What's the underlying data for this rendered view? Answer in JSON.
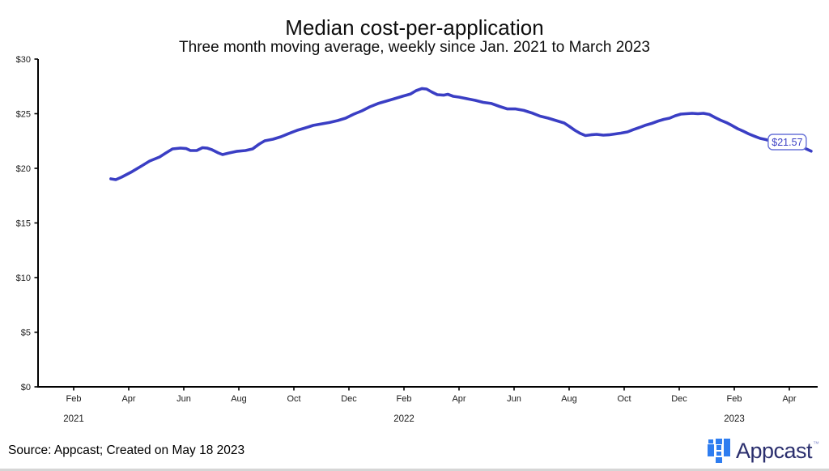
{
  "chart_data": {
    "type": "line",
    "title": "Median cost-per-application",
    "subtitle": "Three month moving average, weekly since Jan. 2021 to March 2023",
    "ylabel": "",
    "xlabel": "",
    "y_domain": [
      0,
      30
    ],
    "x_domain_months_since_jan_2021": [
      -0.3,
      28.2
    ],
    "grid": "off",
    "legend": "none",
    "line_color": "#3a3ec4",
    "y_ticks": [
      {
        "v": 0,
        "label": "$0"
      },
      {
        "v": 5,
        "label": "$5"
      },
      {
        "v": 10,
        "label": "$10"
      },
      {
        "v": 15,
        "label": "$15"
      },
      {
        "v": 20,
        "label": "$20"
      },
      {
        "v": 25,
        "label": "$25"
      },
      {
        "v": 30,
        "label": "$30"
      }
    ],
    "x_ticks": [
      {
        "m": 1,
        "label": "Feb"
      },
      {
        "m": 3,
        "label": "Apr"
      },
      {
        "m": 5,
        "label": "Jun"
      },
      {
        "m": 7,
        "label": "Aug"
      },
      {
        "m": 9,
        "label": "Oct"
      },
      {
        "m": 11,
        "label": "Dec"
      },
      {
        "m": 13,
        "label": "Feb"
      },
      {
        "m": 15,
        "label": "Apr"
      },
      {
        "m": 17,
        "label": "Jun"
      },
      {
        "m": 19,
        "label": "Aug"
      },
      {
        "m": 21,
        "label": "Oct"
      },
      {
        "m": 23,
        "label": "Dec"
      },
      {
        "m": 25,
        "label": "Feb"
      },
      {
        "m": 27,
        "label": "Apr"
      }
    ],
    "year_labels": [
      {
        "m": 1,
        "label": "2021"
      },
      {
        "m": 13,
        "label": "2022"
      },
      {
        "m": 25,
        "label": "2023"
      }
    ],
    "end_annotation": {
      "label": "$21.57",
      "value": 21.57
    },
    "series": [
      {
        "name": "Median cost-per-application",
        "points": [
          [
            2.35,
            19.04
          ],
          [
            2.53,
            18.96
          ],
          [
            2.74,
            19.19
          ],
          [
            3.12,
            19.7
          ],
          [
            3.47,
            20.22
          ],
          [
            3.76,
            20.67
          ],
          [
            4.12,
            21.04
          ],
          [
            4.35,
            21.41
          ],
          [
            4.59,
            21.78
          ],
          [
            4.88,
            21.85
          ],
          [
            5.09,
            21.81
          ],
          [
            5.24,
            21.63
          ],
          [
            5.47,
            21.63
          ],
          [
            5.68,
            21.89
          ],
          [
            5.85,
            21.85
          ],
          [
            6.03,
            21.7
          ],
          [
            6.26,
            21.41
          ],
          [
            6.41,
            21.26
          ],
          [
            6.65,
            21.41
          ],
          [
            6.94,
            21.56
          ],
          [
            7.24,
            21.63
          ],
          [
            7.5,
            21.78
          ],
          [
            7.74,
            22.22
          ],
          [
            7.94,
            22.52
          ],
          [
            8.24,
            22.67
          ],
          [
            8.53,
            22.89
          ],
          [
            8.82,
            23.19
          ],
          [
            9.12,
            23.48
          ],
          [
            9.41,
            23.7
          ],
          [
            9.71,
            23.93
          ],
          [
            10.0,
            24.07
          ],
          [
            10.29,
            24.19
          ],
          [
            10.59,
            24.37
          ],
          [
            10.88,
            24.59
          ],
          [
            11.18,
            24.96
          ],
          [
            11.47,
            25.26
          ],
          [
            11.76,
            25.63
          ],
          [
            12.06,
            25.93
          ],
          [
            12.35,
            26.15
          ],
          [
            12.65,
            26.37
          ],
          [
            12.94,
            26.59
          ],
          [
            13.24,
            26.81
          ],
          [
            13.44,
            27.11
          ],
          [
            13.65,
            27.3
          ],
          [
            13.82,
            27.26
          ],
          [
            14.0,
            27.0
          ],
          [
            14.21,
            26.74
          ],
          [
            14.44,
            26.7
          ],
          [
            14.59,
            26.78
          ],
          [
            14.79,
            26.59
          ],
          [
            15.0,
            26.52
          ],
          [
            15.29,
            26.37
          ],
          [
            15.59,
            26.22
          ],
          [
            15.88,
            26.04
          ],
          [
            16.18,
            25.93
          ],
          [
            16.47,
            25.67
          ],
          [
            16.76,
            25.44
          ],
          [
            17.06,
            25.44
          ],
          [
            17.35,
            25.3
          ],
          [
            17.65,
            25.07
          ],
          [
            17.94,
            24.78
          ],
          [
            18.24,
            24.59
          ],
          [
            18.53,
            24.37
          ],
          [
            18.82,
            24.15
          ],
          [
            19.0,
            23.85
          ],
          [
            19.21,
            23.48
          ],
          [
            19.41,
            23.19
          ],
          [
            19.59,
            23.0
          ],
          [
            19.79,
            23.07
          ],
          [
            20.0,
            23.11
          ],
          [
            20.24,
            23.04
          ],
          [
            20.44,
            23.07
          ],
          [
            20.68,
            23.15
          ],
          [
            20.88,
            23.22
          ],
          [
            21.12,
            23.33
          ],
          [
            21.35,
            23.56
          ],
          [
            21.56,
            23.74
          ],
          [
            21.76,
            23.93
          ],
          [
            22.0,
            24.11
          ],
          [
            22.24,
            24.33
          ],
          [
            22.44,
            24.48
          ],
          [
            22.65,
            24.59
          ],
          [
            22.85,
            24.81
          ],
          [
            23.06,
            24.96
          ],
          [
            23.26,
            25.0
          ],
          [
            23.47,
            25.04
          ],
          [
            23.68,
            25.0
          ],
          [
            23.88,
            25.04
          ],
          [
            24.09,
            24.93
          ],
          [
            24.29,
            24.67
          ],
          [
            24.5,
            24.41
          ],
          [
            24.71,
            24.19
          ],
          [
            24.91,
            23.93
          ],
          [
            25.12,
            23.63
          ],
          [
            25.32,
            23.41
          ],
          [
            25.53,
            23.15
          ],
          [
            25.74,
            22.93
          ],
          [
            25.94,
            22.74
          ],
          [
            26.15,
            22.63
          ],
          [
            26.35,
            22.48
          ],
          [
            26.56,
            22.33
          ],
          [
            26.76,
            22.3
          ],
          [
            26.97,
            22.3
          ],
          [
            27.18,
            22.19
          ],
          [
            27.38,
            22.04
          ],
          [
            27.59,
            21.81
          ],
          [
            27.79,
            21.57
          ]
        ]
      }
    ]
  },
  "footer": {
    "source_text": "Source: Appcast; Created on May 18 2023",
    "brand": {
      "name": "Appcast",
      "tm": "™",
      "wordmark_color": "#2b2f6e",
      "square_color": "#2e7df0"
    }
  }
}
